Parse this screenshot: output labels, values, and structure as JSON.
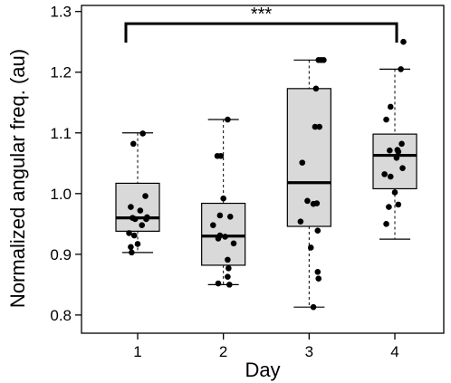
{
  "chart_data": {
    "type": "box",
    "xlabel": "Day",
    "ylabel": "Normalized angular freq. (au)",
    "ylim": [
      0.77,
      1.31
    ],
    "yticks": [
      0.8,
      0.9,
      1.0,
      1.1,
      1.2,
      1.3
    ],
    "ytick_labels": [
      "0.8",
      "0.9",
      "1.0",
      "1.1",
      "1.2",
      "1.3"
    ],
    "categories": [
      "1",
      "2",
      "3",
      "4"
    ],
    "boxes": [
      {
        "category": "1",
        "whisker_low": 0.903,
        "q1": 0.938,
        "median": 0.96,
        "q3": 1.017,
        "whisker_high": 1.1
      },
      {
        "category": "2",
        "whisker_low": 0.85,
        "q1": 0.882,
        "median": 0.93,
        "q3": 0.984,
        "whisker_high": 1.122
      },
      {
        "category": "3",
        "whisker_low": 0.813,
        "q1": 0.946,
        "median": 1.018,
        "q3": 1.173,
        "whisker_high": 1.22
      },
      {
        "category": "4",
        "whisker_low": 0.925,
        "q1": 1.008,
        "median": 1.063,
        "q3": 1.098,
        "whisker_high": 1.205
      }
    ],
    "points": [
      {
        "category": "1",
        "jitter": [
          -0.05,
          0.06,
          0.09,
          -0.08,
          0.03,
          0.11,
          -0.06,
          -0.03,
          0.05,
          0.1,
          -0.1,
          -0.04,
          0.0,
          -0.08,
          -0.07
        ],
        "y": [
          1.082,
          1.099,
          0.996,
          0.978,
          0.972,
          0.961,
          0.96,
          0.958,
          0.948,
          0.958,
          0.935,
          0.931,
          0.917,
          0.912,
          0.903
        ]
      },
      {
        "category": "2",
        "jitter": [
          0.05,
          -0.07,
          -0.03,
          0.0,
          -0.04,
          0.08,
          -0.12,
          -0.04,
          0.02,
          -0.06,
          0.12,
          0.05,
          0.06,
          0.05,
          -0.06,
          0.07
        ],
        "y": [
          1.122,
          1.062,
          1.062,
          0.992,
          0.964,
          0.962,
          0.948,
          0.931,
          0.929,
          0.926,
          0.918,
          0.891,
          0.877,
          0.863,
          0.852,
          0.85
        ]
      },
      {
        "category": "3",
        "jitter": [
          0.11,
          0.17,
          0.14,
          0.08,
          0.07,
          0.12,
          -0.08,
          -0.02,
          0.09,
          0.05,
          -0.1,
          0.1,
          0.02,
          0.1,
          0.11,
          0.05
        ],
        "y": [
          1.22,
          1.22,
          1.22,
          1.173,
          1.11,
          1.11,
          1.051,
          0.988,
          0.984,
          0.983,
          0.954,
          0.939,
          0.911,
          0.871,
          0.86,
          0.813
        ]
      },
      {
        "category": "4",
        "jitter": [
          0.1,
          0.07,
          -0.05,
          -0.1,
          0.08,
          0.03,
          -0.06,
          0.04,
          0.02,
          0.09,
          -0.12,
          -0.05,
          0.0,
          0.04,
          -0.07,
          -0.1
        ],
        "y": [
          1.25,
          1.205,
          1.143,
          1.122,
          1.082,
          1.072,
          1.071,
          1.069,
          1.059,
          1.042,
          1.032,
          1.028,
          1.002,
          0.982,
          0.978,
          0.95
        ]
      }
    ],
    "significance": {
      "from": "1",
      "to": "4",
      "label": "***",
      "y": 1.28
    },
    "colors": {
      "box_fill": "#d9d9d9",
      "stroke": "#000000",
      "point": "#000000"
    },
    "grid": false
  }
}
